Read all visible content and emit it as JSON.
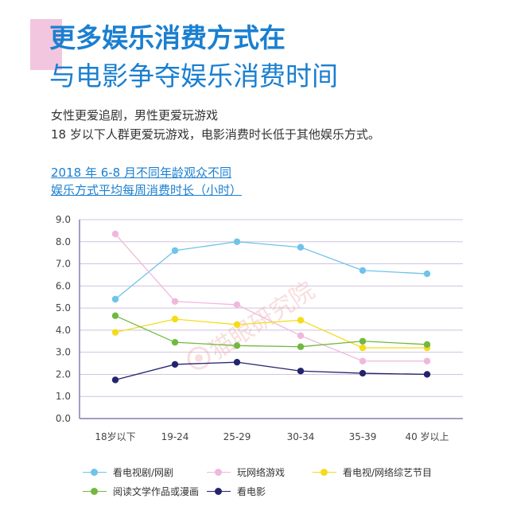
{
  "header": {
    "title_line1": "更多娱乐消费方式在",
    "title_line2": "与电影争夺娱乐消费时间"
  },
  "subtitle": {
    "line1": "女性更爱追剧，男性更爱玩游戏",
    "line2": "18 岁以下人群更爱玩游戏，电影消费时长低于其他娱乐方式。"
  },
  "chart_title": {
    "line1": "2018 年 6-8 月不同年龄观众不同",
    "line2": "娱乐方式平均每周消费时长（小时）"
  },
  "watermark": "猫眼研究院",
  "colors": {
    "title": "#1a7fd0",
    "accent_block": "#f2c6de",
    "grid": "#cfc3e0",
    "axis": "#8a7ab0"
  },
  "chart_data": {
    "type": "line",
    "categories": [
      "18岁以下",
      "19-24",
      "25-29",
      "30-34",
      "35-39",
      "40 岁以上"
    ],
    "ylim": [
      0,
      9
    ],
    "yticks": [
      "0.0",
      "1.0",
      "2.0",
      "3.0",
      "4.0",
      "5.0",
      "6.0",
      "7.0",
      "8.0",
      "9.0"
    ],
    "grid": true,
    "legend_position": "bottom",
    "series": [
      {
        "name": "看电视剧/网剧",
        "color": "#6fc3ea",
        "values": [
          5.4,
          7.6,
          8.0,
          7.75,
          6.7,
          6.55
        ]
      },
      {
        "name": "玩网络游戏",
        "color": "#efb8dc",
        "values": [
          8.35,
          5.3,
          5.15,
          3.75,
          2.6,
          2.6
        ]
      },
      {
        "name": "看电视/网络综艺节目",
        "color": "#f4dc1a",
        "values": [
          3.9,
          4.5,
          4.25,
          4.45,
          3.2,
          3.2
        ]
      },
      {
        "name": "阅读文学作品或漫画",
        "color": "#72b840",
        "values": [
          4.65,
          3.45,
          3.3,
          3.25,
          3.5,
          3.35
        ]
      },
      {
        "name": "看电影",
        "color": "#24246e",
        "values": [
          1.75,
          2.45,
          2.55,
          2.15,
          2.05,
          2.0
        ]
      }
    ]
  }
}
